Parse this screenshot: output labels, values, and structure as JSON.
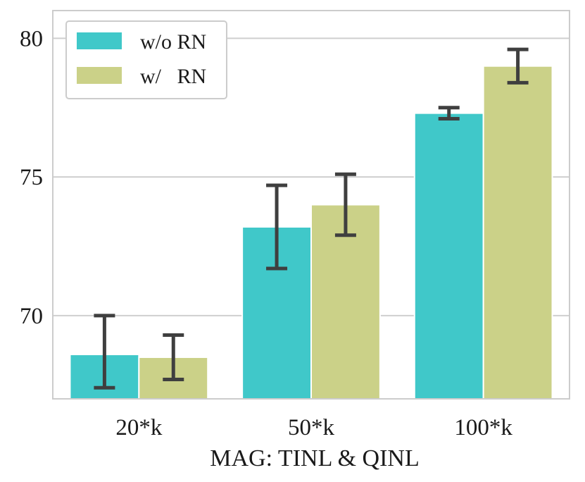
{
  "chart_data": {
    "type": "bar",
    "title": "",
    "xlabel": "MAG: TINL & QINL",
    "ylabel": "",
    "categories": [
      "20*k",
      "50*k",
      "100*k"
    ],
    "ylim": [
      67,
      81
    ],
    "yticks": [
      70,
      75,
      80
    ],
    "grid": true,
    "legend_position": "top-left",
    "series": [
      {
        "name": "w/o RN",
        "color": "#40c8c9",
        "values": [
          68.6,
          73.2,
          77.3
        ],
        "err_low": [
          67.4,
          71.7,
          77.1
        ],
        "err_high": [
          70.0,
          74.7,
          77.5
        ]
      },
      {
        "name": "w/   RN",
        "color": "#cbd188",
        "values": [
          68.5,
          74.0,
          79.0
        ],
        "err_low": [
          67.7,
          72.9,
          78.4
        ],
        "err_high": [
          69.3,
          75.1,
          79.6
        ]
      }
    ]
  }
}
